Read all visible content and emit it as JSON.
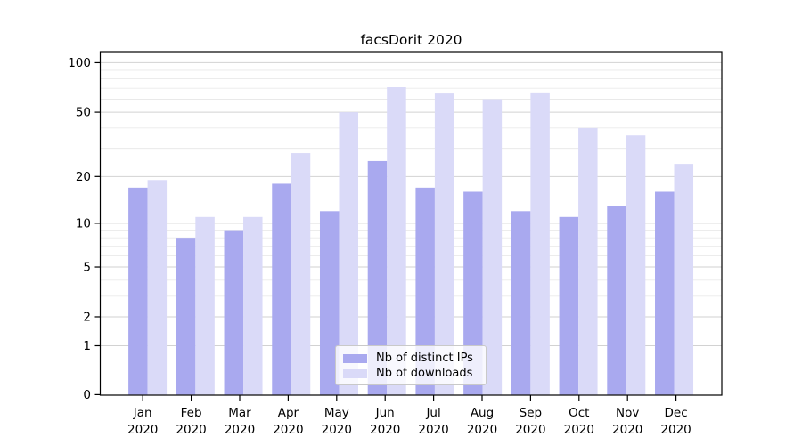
{
  "chart_data": {
    "type": "bar",
    "title": "facsDorit 2020",
    "year": "2020",
    "months": [
      "Jan",
      "Feb",
      "Mar",
      "Apr",
      "May",
      "Jun",
      "Jul",
      "Aug",
      "Sep",
      "Oct",
      "Nov",
      "Dec"
    ],
    "categories": [
      "Jan 2020",
      "Feb 2020",
      "Mar 2020",
      "Apr 2020",
      "May 2020",
      "Jun 2020",
      "Jul 2020",
      "Aug 2020",
      "Sep 2020",
      "Oct 2020",
      "Nov 2020",
      "Dec 2020"
    ],
    "series": [
      {
        "name": "Nb of distinct IPs",
        "color": "#a9a9ef",
        "values": [
          17,
          8,
          9,
          18,
          12,
          25,
          17,
          16,
          12,
          11,
          13,
          16
        ]
      },
      {
        "name": "Nb of downloads",
        "color": "#dadaf8",
        "values": [
          19,
          11,
          11,
          28,
          50,
          71,
          65,
          60,
          66,
          40,
          36,
          24
        ]
      }
    ],
    "y_axis": {
      "scale": "symlog",
      "major_ticks": [
        0,
        1,
        2,
        5,
        10,
        20,
        50,
        100
      ],
      "minor_ticks": [
        3,
        4,
        6,
        7,
        8,
        9,
        30,
        40,
        60,
        70,
        80,
        90
      ],
      "ylim": [
        0,
        115
      ]
    },
    "legend": {
      "position": "lower center"
    },
    "grid": true,
    "colors": {
      "major_grid": "#d2d2d2",
      "minor_grid": "#e9e9e9",
      "axis": "#000000"
    }
  }
}
